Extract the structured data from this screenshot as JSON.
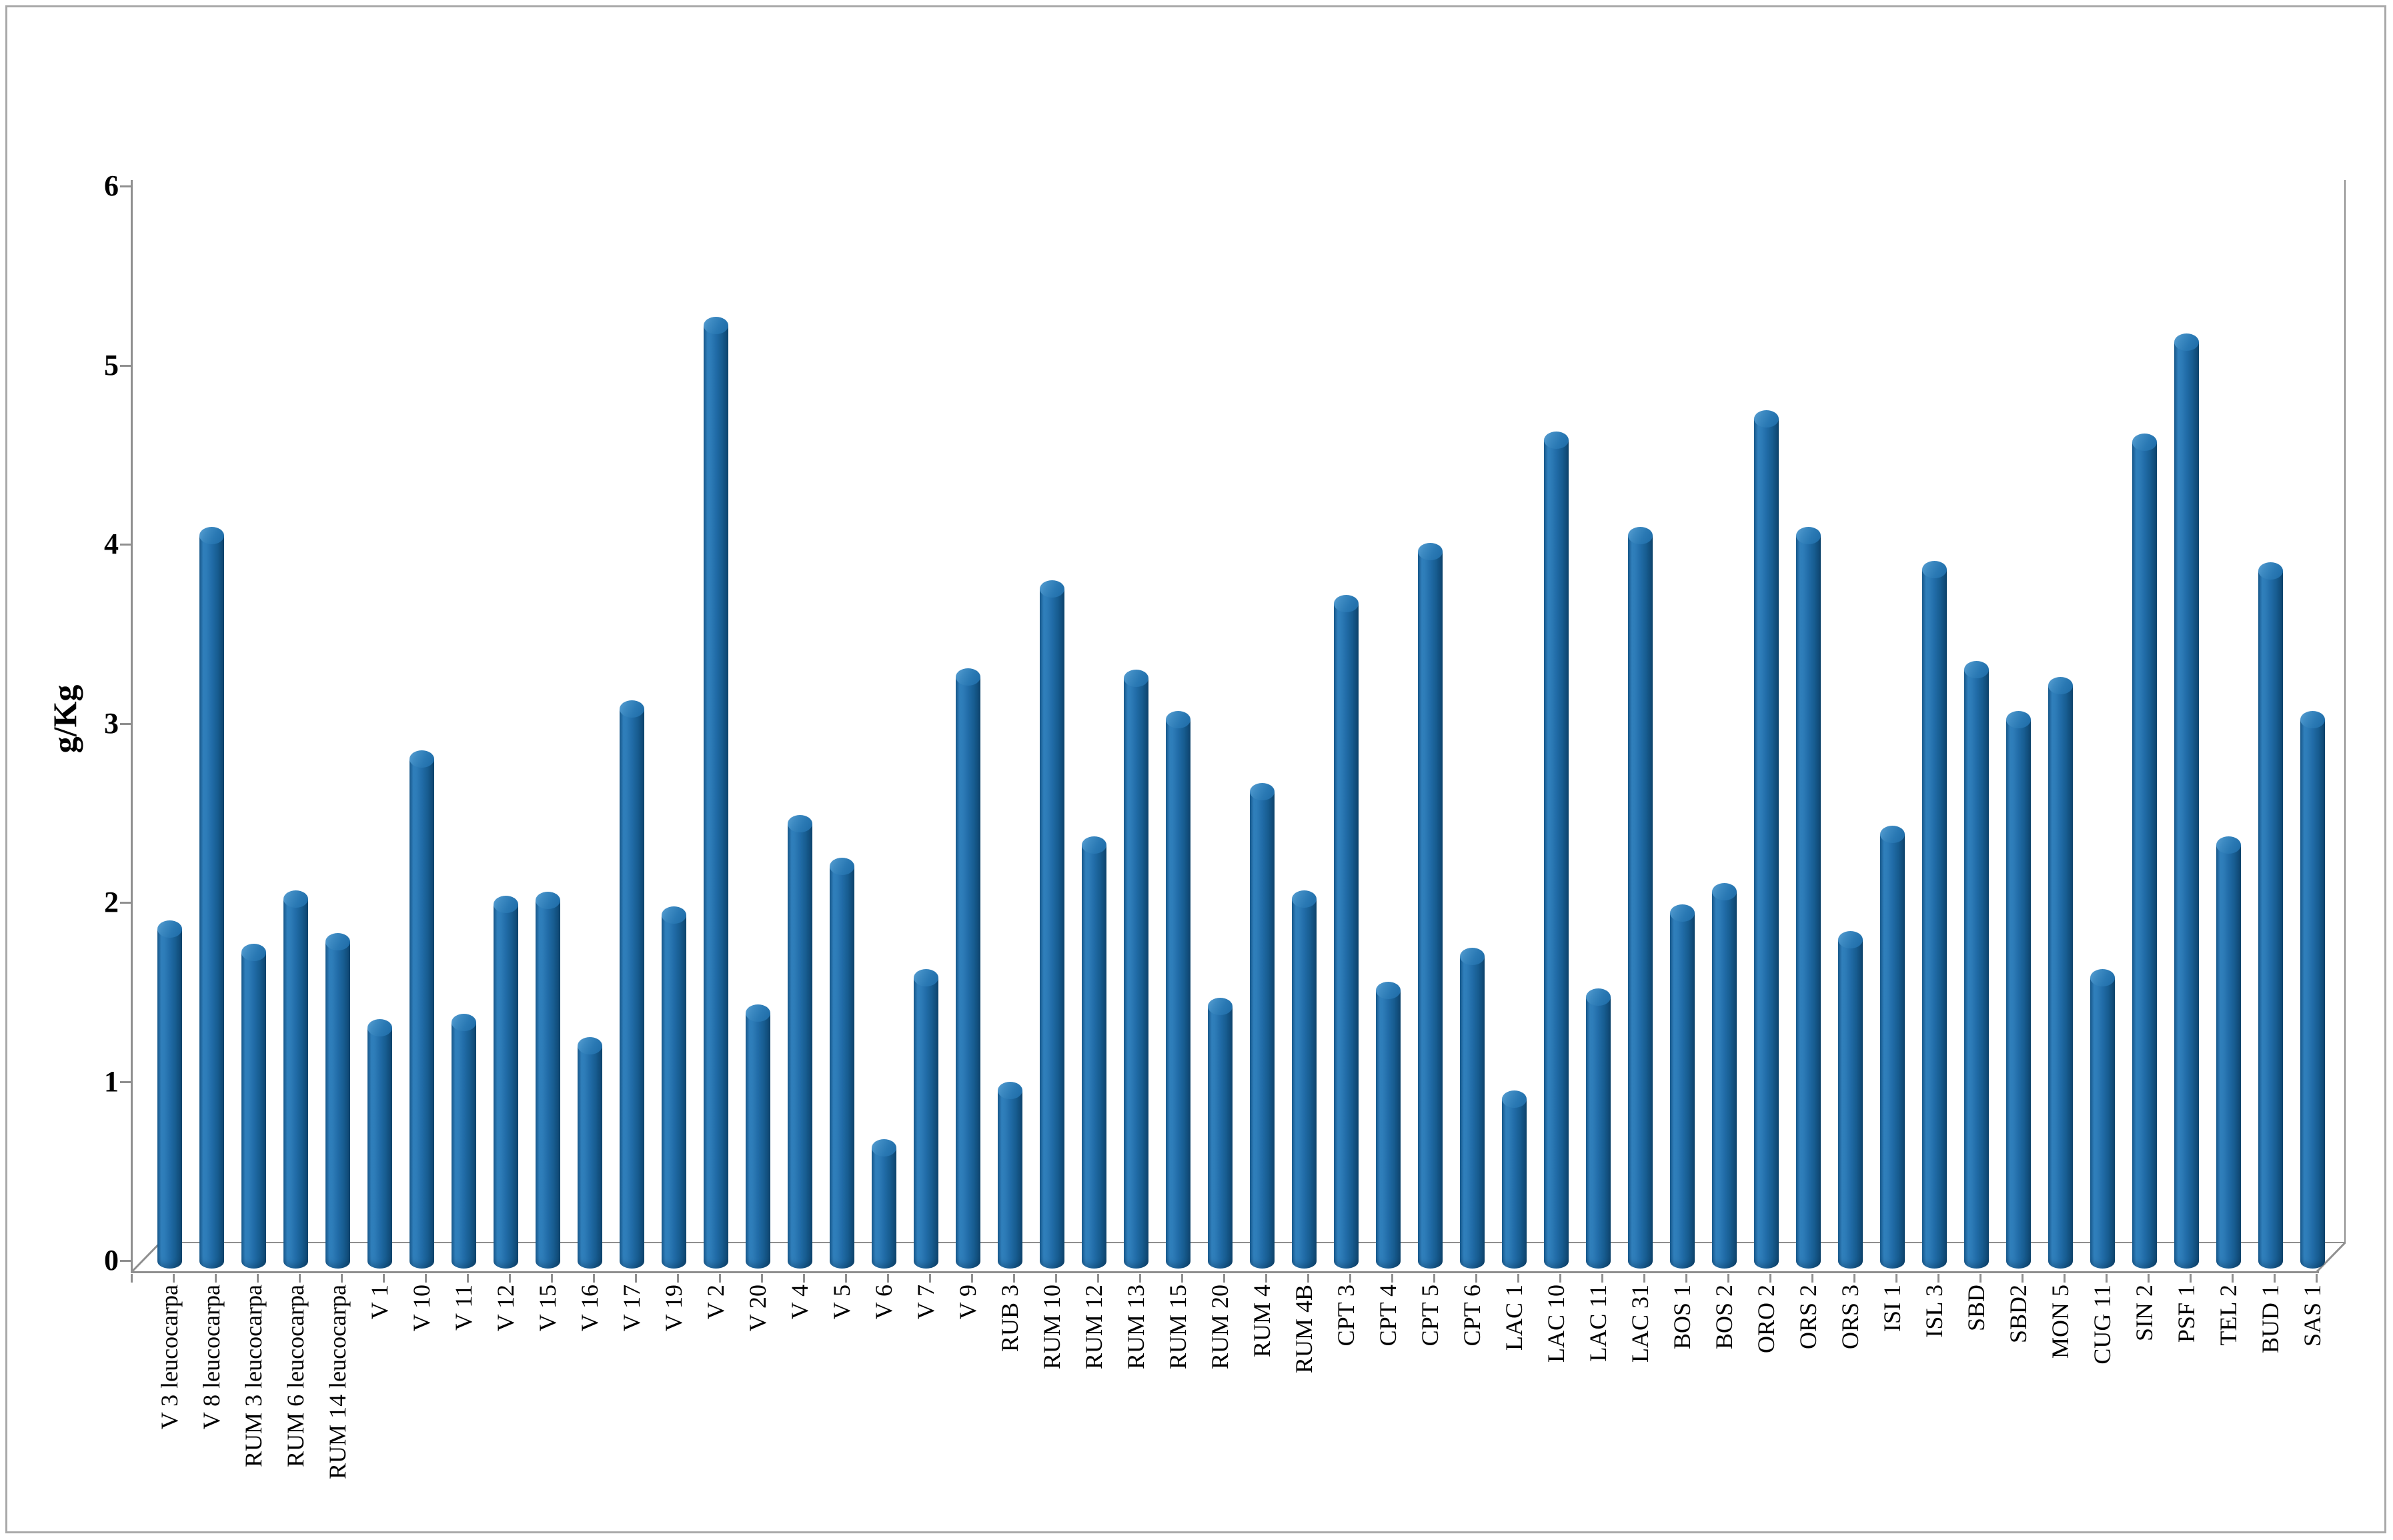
{
  "chart_data": {
    "type": "bar",
    "style": "3d-cylinder",
    "title": "",
    "xlabel": "",
    "ylabel": "g/Kg",
    "ylim": [
      0,
      6
    ],
    "yticks": [
      0,
      1,
      2,
      3,
      4,
      5,
      6
    ],
    "grid": false,
    "legend": false,
    "bar_color": "#1E6CA8",
    "axis_color": "#8F8F8F",
    "frame_border_color": "#A9A9A9",
    "background_color": "#FFFFFF",
    "categories": [
      "V 3 leucocarpa",
      "V 8 leucocarpa",
      "RUM 3 leucocarpa",
      "RUM 6 leucocarpa",
      "RUM 14 leucocarpa",
      "V 1",
      "V 10",
      "V 11",
      "V 12",
      "V 15",
      "V 16",
      "V 17",
      "V 19",
      "V 2",
      "V 20",
      "V 4",
      "V 5",
      "V 6",
      "V 7",
      "V 9",
      "RUB 3",
      "RUM 10",
      "RUM 12",
      "RUM 13",
      "RUM 15",
      "RUM 20",
      "RUM 4",
      "RUM 4B",
      "CPT 3",
      "CPT 4",
      "CPT 5",
      "CPT 6",
      "LAC 1",
      "LAC 10",
      "LAC 11",
      "LAC 31",
      "BOS 1",
      "BOS 2",
      "ORO 2",
      "ORS 2",
      "ORS 3",
      "ISI 1",
      "ISL 3",
      "SBD",
      "SBD2",
      "MON 5",
      "CUG 11",
      "SIN 2",
      "PSF 1",
      "TEL 2",
      "BUD 1",
      "SAS 1"
    ],
    "values": [
      1.85,
      4.05,
      1.72,
      2.02,
      1.78,
      1.3,
      2.8,
      1.33,
      1.99,
      2.01,
      1.2,
      3.08,
      1.93,
      5.22,
      1.38,
      2.44,
      2.2,
      0.63,
      1.58,
      3.26,
      0.95,
      3.75,
      2.32,
      3.25,
      3.02,
      1.42,
      2.62,
      2.02,
      3.67,
      1.51,
      3.96,
      1.7,
      0.9,
      4.58,
      1.47,
      4.05,
      1.94,
      2.06,
      4.7,
      4.05,
      1.79,
      2.38,
      3.86,
      3.3,
      3.02,
      3.21,
      1.58,
      4.57,
      5.13,
      2.32,
      3.85,
      3.02
    ]
  }
}
